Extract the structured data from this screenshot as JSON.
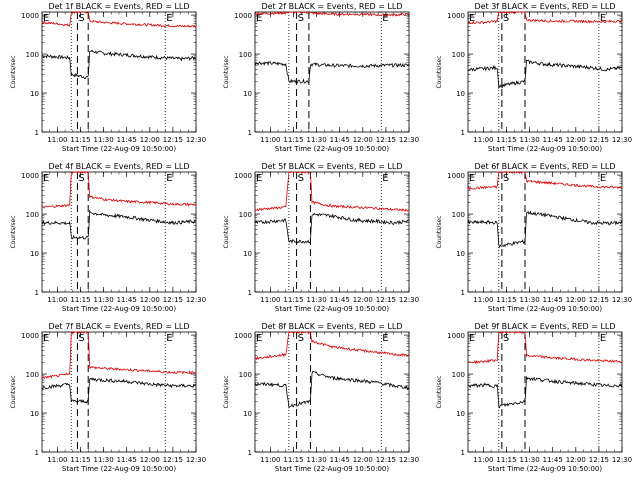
{
  "chart_data": {
    "type": "line",
    "layout": "3x3 grid",
    "y_scale": "log",
    "ylim": [
      1,
      1200
    ],
    "yticks": [
      "1",
      "10",
      "100",
      "1000"
    ],
    "ylabel": "Counts/sec",
    "xlim": [
      "10:50:00",
      "12:30:00"
    ],
    "xticks": [
      "11:00",
      "11:15",
      "11:30",
      "11:45",
      "12:00",
      "12:15",
      "12:30"
    ],
    "xlabel": "Start Time (22-Aug-09 10:50:00)",
    "series_colors": {
      "events": "#000000",
      "lld": "#dd0000"
    },
    "panels": [
      {
        "title": "Det 1f BLACK = Events, RED = LLD",
        "markers": [
          {
            "label": "E",
            "t": "10:50:00"
          },
          {
            "label": "S",
            "t": "11:13:00"
          },
          {
            "label": "E",
            "t": "12:10:00"
          }
        ],
        "dotted_lines": [
          "11:09:00",
          "12:10:00"
        ],
        "dashed_lines": [
          "11:13:00",
          "11:20:00"
        ],
        "events": {
          "t": [
            "10:50",
            "11:00",
            "11:08",
            "11:09",
            "11:20",
            "11:21",
            "11:30",
            "11:45",
            "12:00",
            "12:10",
            "12:20",
            "12:30"
          ],
          "v": [
            90,
            85,
            80,
            30,
            25,
            120,
            105,
            95,
            85,
            80,
            75,
            80
          ]
        },
        "lld": {
          "t": [
            "10:50",
            "11:00",
            "11:08",
            "11:09",
            "11:20",
            "11:21",
            "11:30",
            "11:45",
            "12:00",
            "12:10",
            "12:20",
            "12:30"
          ],
          "v": [
            650,
            600,
            550,
            1200,
            1200,
            700,
            650,
            600,
            560,
            540,
            520,
            520
          ]
        }
      },
      {
        "title": "Det 2f BLACK = Events, RED = LLD",
        "markers": [
          {
            "label": "E",
            "t": "10:50:00"
          },
          {
            "label": "S",
            "t": "11:17:00"
          },
          {
            "label": "E",
            "t": "12:12:00"
          }
        ],
        "dotted_lines": [
          "11:12:00",
          "12:12:00"
        ],
        "dashed_lines": [
          "11:17:00",
          "11:25:00"
        ],
        "events": {
          "t": [
            "10:50",
            "11:00",
            "11:10",
            "11:12",
            "11:25",
            "11:26",
            "11:35",
            "11:50",
            "12:05",
            "12:20",
            "12:30"
          ],
          "v": [
            60,
            58,
            55,
            20,
            20,
            55,
            52,
            50,
            50,
            52,
            52
          ]
        },
        "lld": {
          "t": [
            "10:50",
            "11:00",
            "11:10",
            "11:12",
            "11:20",
            "11:30",
            "11:45",
            "12:00",
            "12:15",
            "12:30"
          ],
          "v": [
            1100,
            1100,
            1150,
            1200,
            1200,
            1100,
            1050,
            1050,
            1000,
            1050
          ]
        }
      },
      {
        "title": "Det 3f BLACK = Events, RED = LLD",
        "markers": [
          {
            "label": "E",
            "t": "10:50:00"
          },
          {
            "label": "S",
            "t": "11:12:00"
          },
          {
            "label": "E",
            "t": "12:15:00"
          }
        ],
        "dotted_lines": [
          "11:10:00",
          "12:15:00"
        ],
        "dashed_lines": [
          "11:12:00",
          "11:27:00"
        ],
        "events": {
          "t": [
            "10:50",
            "11:00",
            "11:09",
            "11:10",
            "11:27",
            "11:28",
            "11:40",
            "11:55",
            "12:10",
            "12:20",
            "12:30"
          ],
          "v": [
            40,
            42,
            45,
            15,
            20,
            65,
            55,
            50,
            45,
            40,
            45
          ]
        },
        "lld": {
          "t": [
            "10:50",
            "11:00",
            "11:09",
            "11:10",
            "11:27",
            "11:28",
            "11:45",
            "12:00",
            "12:15",
            "12:30"
          ],
          "v": [
            650,
            650,
            700,
            1200,
            1200,
            750,
            700,
            700,
            680,
            700
          ]
        }
      },
      {
        "title": "Det 4f BLACK = Events, RED = LLD",
        "markers": [
          {
            "label": "E",
            "t": "10:50:00"
          },
          {
            "label": "S",
            "t": "11:13:00"
          },
          {
            "label": "E",
            "t": "12:10:00"
          }
        ],
        "dotted_lines": [
          "11:09:00",
          "12:10:00"
        ],
        "dashed_lines": [
          "11:13:00",
          "11:20:00"
        ],
        "events": {
          "t": [
            "10:50",
            "11:00",
            "11:08",
            "11:09",
            "11:20",
            "11:21",
            "11:30",
            "11:45",
            "12:00",
            "12:15",
            "12:30"
          ],
          "v": [
            60,
            60,
            58,
            25,
            25,
            110,
            95,
            85,
            70,
            60,
            65
          ]
        },
        "lld": {
          "t": [
            "10:50",
            "11:00",
            "11:08",
            "11:09",
            "11:20",
            "11:21",
            "11:30",
            "11:45",
            "12:00",
            "12:15",
            "12:30"
          ],
          "v": [
            150,
            160,
            170,
            1200,
            1200,
            280,
            240,
            210,
            200,
            180,
            175
          ]
        }
      },
      {
        "title": "Det 5f BLACK = Events, RED = LLD",
        "markers": [
          {
            "label": "E",
            "t": "10:50:00"
          },
          {
            "label": "S",
            "t": "11:17:00"
          },
          {
            "label": "E",
            "t": "12:12:00"
          }
        ],
        "dotted_lines": [
          "11:12:00",
          "12:12:00"
        ],
        "dashed_lines": [
          "11:17:00",
          "11:26:00"
        ],
        "events": {
          "t": [
            "10:50",
            "11:00",
            "11:10",
            "11:12",
            "11:26",
            "11:27",
            "11:40",
            "11:55",
            "12:10",
            "12:20",
            "12:30"
          ],
          "v": [
            60,
            65,
            70,
            20,
            20,
            100,
            90,
            70,
            65,
            60,
            65
          ]
        },
        "lld": {
          "t": [
            "10:50",
            "11:00",
            "11:10",
            "11:12",
            "11:26",
            "11:27",
            "11:40",
            "11:55",
            "12:10",
            "12:20",
            "12:30"
          ],
          "v": [
            130,
            140,
            150,
            1200,
            1200,
            200,
            160,
            150,
            140,
            130,
            125
          ]
        }
      },
      {
        "title": "Det 6f BLACK = Events, RED = LLD",
        "markers": [
          {
            "label": "E",
            "t": "10:50:00"
          },
          {
            "label": "S",
            "t": "11:12:00"
          },
          {
            "label": "E",
            "t": "12:15:00"
          }
        ],
        "dotted_lines": [
          "11:10:00",
          "12:15:00"
        ],
        "dashed_lines": [
          "11:12:00",
          "11:27:00"
        ],
        "events": {
          "t": [
            "10:50",
            "11:00",
            "11:09",
            "11:10",
            "11:27",
            "11:28",
            "11:40",
            "11:55",
            "12:10",
            "12:20",
            "12:30"
          ],
          "v": [
            60,
            62,
            60,
            15,
            20,
            110,
            95,
            75,
            60,
            58,
            60
          ]
        },
        "lld": {
          "t": [
            "10:50",
            "11:00",
            "11:09",
            "11:10",
            "11:27",
            "11:28",
            "11:45",
            "12:00",
            "12:15",
            "12:30"
          ],
          "v": [
            450,
            480,
            500,
            1200,
            1200,
            700,
            620,
            550,
            500,
            480
          ]
        }
      },
      {
        "title": "Det 7f BLACK = Events, RED = LLD",
        "markers": [
          {
            "label": "E",
            "t": "10:50:00"
          },
          {
            "label": "S",
            "t": "11:13:00"
          },
          {
            "label": "E",
            "t": "12:10:00"
          }
        ],
        "dotted_lines": [
          "11:09:00",
          "12:10:00"
        ],
        "dashed_lines": [
          "11:13:00",
          "11:20:00"
        ],
        "events": {
          "t": [
            "10:50",
            "11:00",
            "11:08",
            "11:09",
            "11:20",
            "11:21",
            "11:30",
            "11:45",
            "12:00",
            "12:15",
            "12:30"
          ],
          "v": [
            45,
            50,
            55,
            20,
            20,
            75,
            70,
            65,
            55,
            50,
            50
          ]
        },
        "lld": {
          "t": [
            "10:50",
            "11:00",
            "11:08",
            "11:09",
            "11:20",
            "11:21",
            "11:30",
            "11:45",
            "12:00",
            "12:15",
            "12:30"
          ],
          "v": [
            80,
            90,
            100,
            1200,
            1200,
            150,
            140,
            130,
            120,
            110,
            110
          ]
        }
      },
      {
        "title": "Det 8f BLACK = Events, RED = LLD",
        "markers": [
          {
            "label": "E",
            "t": "10:50:00"
          },
          {
            "label": "S",
            "t": "11:17:00"
          },
          {
            "label": "E",
            "t": "12:12:00"
          }
        ],
        "dotted_lines": [
          "11:12:00",
          "12:12:00"
        ],
        "dashed_lines": [
          "11:17:00",
          "11:26:00"
        ],
        "events": {
          "t": [
            "10:50",
            "11:00",
            "11:10",
            "11:12",
            "11:26",
            "11:27",
            "11:40",
            "11:55",
            "12:10",
            "12:20",
            "12:30"
          ],
          "v": [
            55,
            55,
            50,
            15,
            20,
            110,
            80,
            70,
            60,
            50,
            45
          ]
        },
        "lld": {
          "t": [
            "10:50",
            "11:00",
            "11:10",
            "11:12",
            "11:26",
            "11:27",
            "11:40",
            "11:55",
            "12:10",
            "12:20",
            "12:30"
          ],
          "v": [
            250,
            280,
            320,
            1200,
            1200,
            700,
            500,
            420,
            360,
            320,
            300
          ]
        }
      },
      {
        "title": "Det 9f BLACK = Events, RED = LLD",
        "markers": [
          {
            "label": "E",
            "t": "10:50:00"
          },
          {
            "label": "S",
            "t": "11:12:00"
          },
          {
            "label": "E",
            "t": "12:15:00"
          }
        ],
        "dotted_lines": [
          "11:10:00",
          "12:15:00"
        ],
        "dashed_lines": [
          "11:12:00",
          "11:27:00"
        ],
        "events": {
          "t": [
            "10:50",
            "11:00",
            "11:09",
            "11:10",
            "11:27",
            "11:28",
            "11:40",
            "11:55",
            "12:10",
            "12:20",
            "12:30"
          ],
          "v": [
            50,
            52,
            50,
            15,
            20,
            80,
            70,
            60,
            55,
            50,
            52
          ]
        },
        "lld": {
          "t": [
            "10:50",
            "11:00",
            "11:09",
            "11:10",
            "11:27",
            "11:28",
            "11:45",
            "12:00",
            "12:15",
            "12:30"
          ],
          "v": [
            200,
            210,
            230,
            1200,
            1200,
            300,
            260,
            240,
            220,
            210
          ]
        }
      }
    ]
  }
}
